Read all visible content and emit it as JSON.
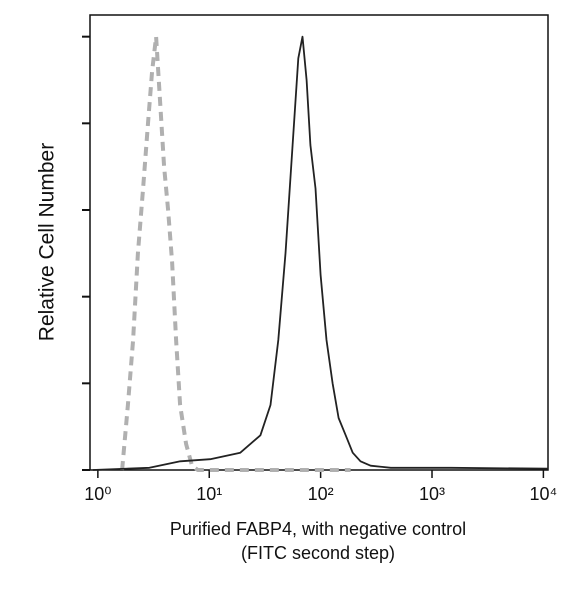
{
  "chart_data": {
    "type": "line",
    "xlabel": [
      "Purified FABP4, with negative control",
      "(FITC second step)"
    ],
    "ylabel": "Relative Cell Number",
    "xscale": "log",
    "xlim": [
      0.85,
      11000
    ],
    "ylim": [
      0,
      105
    ],
    "xticks": [
      {
        "value": 1,
        "label": "10⁰"
      },
      {
        "value": 10,
        "label": "10¹"
      },
      {
        "value": 100,
        "label": "10²"
      },
      {
        "value": 1000,
        "label": "10³"
      },
      {
        "value": 10000,
        "label": "10⁴"
      }
    ],
    "yticks": [
      0,
      20,
      40,
      60,
      80,
      100
    ],
    "series": [
      {
        "color": "#b0b0b0",
        "linestyle": "dashed",
        "x": [
          1.65,
          1.86,
          2.07,
          2.29,
          2.55,
          2.82,
          3.07,
          3.33,
          3.62,
          3.93,
          4.27,
          4.64,
          5.04,
          5.48,
          6.2,
          7.0,
          7.9,
          28.8,
          186
        ],
        "values": [
          0,
          15,
          30,
          50,
          65,
          80,
          92,
          100,
          85,
          70,
          60,
          48,
          30,
          15,
          6,
          1,
          0,
          0,
          0
        ]
      },
      {
        "color": "#222222",
        "linestyle": "solid",
        "x": [
          0.9,
          2.9,
          5.5,
          10.2,
          19,
          28.8,
          35.5,
          41.7,
          48.4,
          56,
          63,
          68.8,
          74.9,
          81,
          90,
          100,
          113,
          128,
          145,
          168,
          194,
          228,
          281,
          427,
          1480,
          11000
        ],
        "values": [
          0,
          0.5,
          2,
          2.5,
          4,
          8,
          15,
          30,
          50,
          75,
          95,
          100,
          90,
          75,
          65,
          45,
          30,
          20,
          12,
          8,
          4,
          2,
          1,
          0.5,
          0.5,
          0.3
        ]
      }
    ]
  }
}
